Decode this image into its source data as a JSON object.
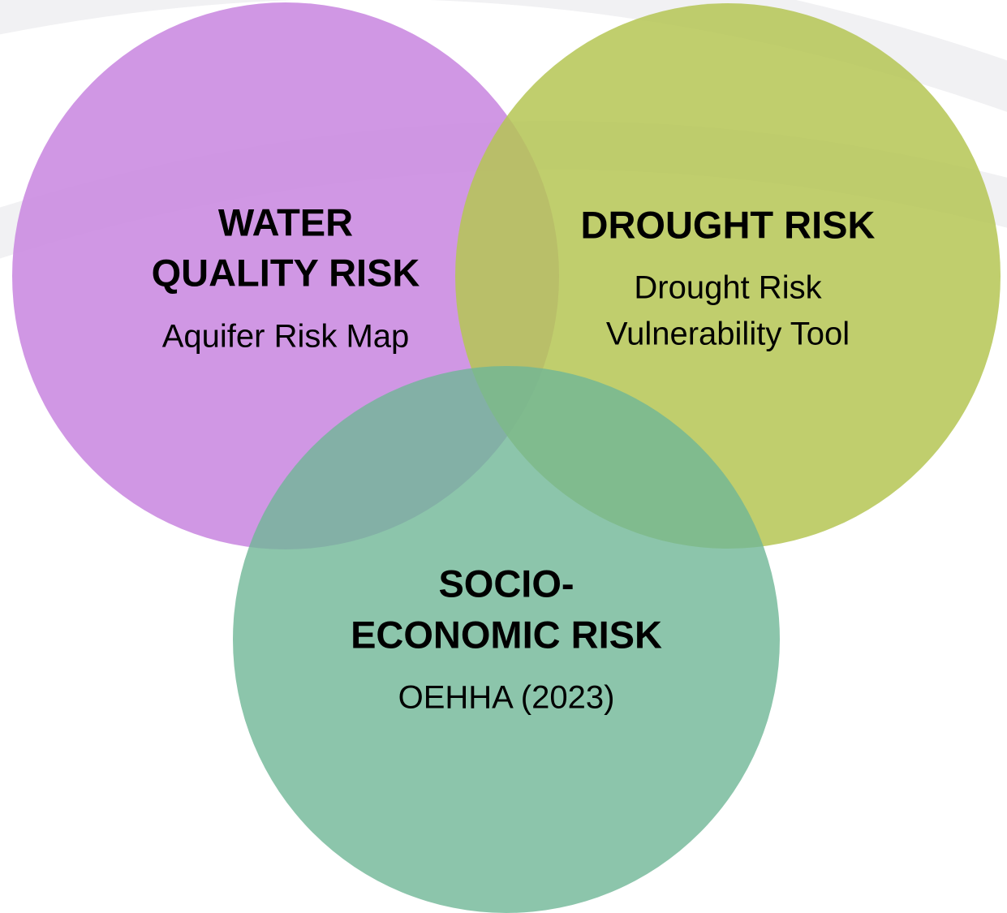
{
  "nodes": [
    {
      "title": [
        "WATER",
        "QUALITY RISK"
      ],
      "subtitle": [
        "Aquifer Risk Map"
      ]
    },
    {
      "title": [
        "DROUGHT RISK"
      ],
      "subtitle": [
        "Drought Risk",
        "Vulnerability Tool"
      ]
    },
    {
      "title": [
        "SOCIO-",
        "ECONOMIC RISK"
      ],
      "subtitle": [
        "OEHHA (2023)"
      ]
    }
  ]
}
